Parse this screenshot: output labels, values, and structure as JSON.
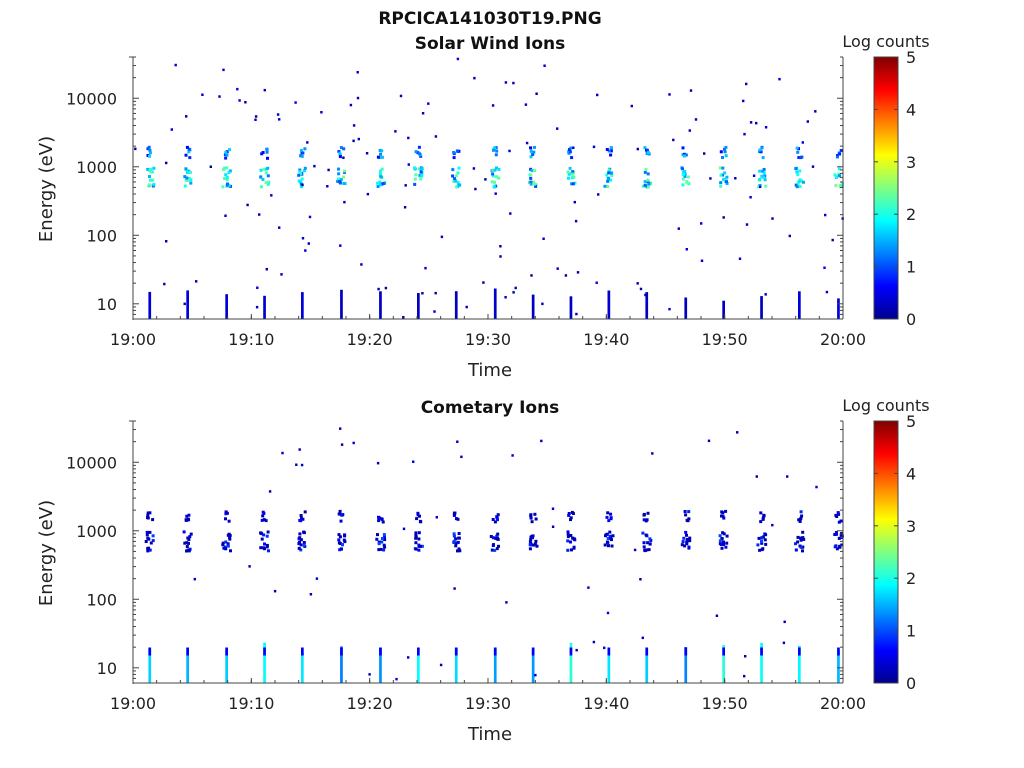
{
  "figure_title": "RPCICA141030T19.PNG",
  "colorbar_label": "Log counts",
  "colorbar_ticks": [
    "0",
    "1",
    "2",
    "3",
    "4",
    "5"
  ],
  "colormap": [
    "#00008f",
    "#0000ff",
    "#0080ff",
    "#00ffff",
    "#80ff80",
    "#ffff00",
    "#ff8000",
    "#ff0000",
    "#800000"
  ],
  "chart_data": [
    {
      "type": "heatmap",
      "title": "Solar Wind Ions",
      "xlabel": "Time",
      "ylabel": "Energy (eV)",
      "x_ticks": [
        "19:00",
        "19:10",
        "19:20",
        "19:30",
        "19:40",
        "19:50",
        "20:00"
      ],
      "xlim": [
        "19:00",
        "20:00"
      ],
      "y_scale": "log",
      "y_ticks": [
        "10",
        "100",
        "1000",
        "10000"
      ],
      "ylim": [
        6,
        40000
      ],
      "color_scale": "log counts",
      "color_range": [
        0,
        5
      ],
      "sweep_times_min": [
        1.3,
        4.5,
        7.8,
        11.0,
        14.2,
        17.5,
        20.8,
        24.0,
        27.2,
        30.5,
        33.7,
        36.9,
        40.1,
        43.3,
        46.6,
        49.8,
        53.0,
        56.2,
        59.5
      ],
      "features": {
        "main_peak_energy_eV": 700,
        "main_peak_level": 2.5,
        "secondary_peak_energy_eV": 1600,
        "secondary_peak_level": 1.7,
        "low_energy_band_eV": [
          6,
          13
        ],
        "low_energy_level": 0.4
      }
    },
    {
      "type": "heatmap",
      "title": "Cometary Ions",
      "xlabel": "Time",
      "ylabel": "Energy (eV)",
      "x_ticks": [
        "19:00",
        "19:10",
        "19:20",
        "19:30",
        "19:40",
        "19:50",
        "20:00"
      ],
      "xlim": [
        "19:00",
        "20:00"
      ],
      "y_scale": "log",
      "y_ticks": [
        "10",
        "100",
        "1000",
        "10000"
      ],
      "ylim": [
        6,
        40000
      ],
      "color_scale": "log counts",
      "color_range": [
        0,
        5
      ],
      "sweep_times_min": [
        1.3,
        4.5,
        7.8,
        11.0,
        14.2,
        17.5,
        20.8,
        24.0,
        27.2,
        30.5,
        33.7,
        36.9,
        40.1,
        43.3,
        46.6,
        49.8,
        53.0,
        56.2,
        59.5
      ],
      "features": {
        "main_peak_energy_eV": 700,
        "main_peak_level": 1.0,
        "secondary_peak_energy_eV": 1600,
        "secondary_peak_level": 0.8,
        "low_energy_band_eV": [
          6,
          18
        ],
        "low_energy_level": 2.0
      }
    }
  ]
}
